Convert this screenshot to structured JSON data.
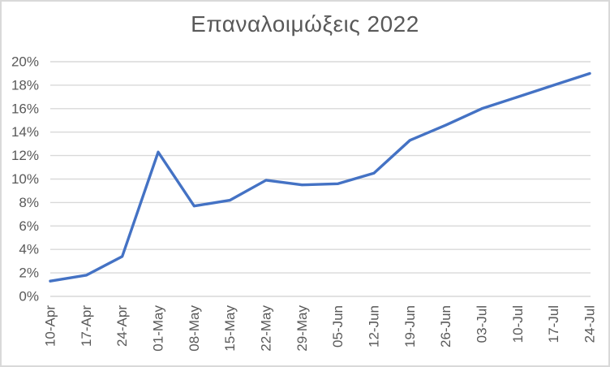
{
  "chart_data": {
    "type": "line",
    "title": "Επαναλοιμώξεις 2022",
    "categories": [
      "10-Apr",
      "17-Apr",
      "24-Apr",
      "01-May",
      "08-May",
      "15-May",
      "22-May",
      "29-May",
      "05-Jun",
      "12-Jun",
      "19-Jun",
      "26-Jun",
      "03-Jul",
      "10-Jul",
      "17-Jul",
      "24-Jul"
    ],
    "series": [
      {
        "values": [
          1.3,
          1.8,
          3.4,
          12.3,
          7.7,
          8.2,
          9.9,
          9.5,
          9.6,
          10.5,
          13.3,
          14.6,
          16.0,
          17.0,
          18.0,
          19.0
        ]
      }
    ],
    "xlabel": "",
    "ylabel": "",
    "ylim": [
      0,
      20
    ],
    "ytick_step": 2,
    "ytick_suffix": "%",
    "grid": true,
    "legend": "none",
    "x_label_rotation": -90,
    "colors": {
      "series": "#4472C4",
      "gridline": "#D9D9D9",
      "text": "#595959",
      "border": "#D9D9D9",
      "background": "#FFFFFF"
    }
  }
}
